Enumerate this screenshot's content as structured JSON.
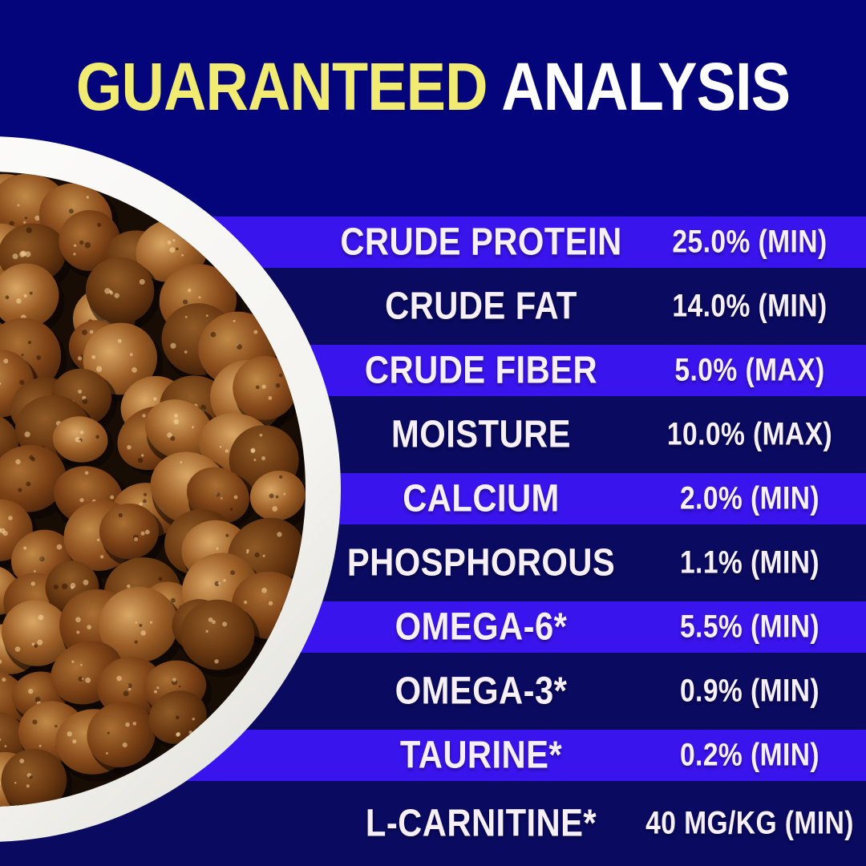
{
  "title": {
    "highlight": "GUARANTEED",
    "rest": "ANALYSIS"
  },
  "analysis_table": {
    "rows": [
      {
        "label": "CRUDE PROTEIN",
        "value": "25.0% (MIN)"
      },
      {
        "label": "CRUDE FAT",
        "value": "14.0% (MIN)"
      },
      {
        "label": "CRUDE FIBER",
        "value": "5.0% (MAX)"
      },
      {
        "label": "MOISTURE",
        "value": "10.0% (MAX)"
      },
      {
        "label": "CALCIUM",
        "value": "2.0% (MIN)"
      },
      {
        "label": "PHOSPHOROUS",
        "value": "1.1% (MIN)"
      },
      {
        "label": "OMEGA-6*",
        "value": "5.5% (MIN)"
      },
      {
        "label": "OMEGA-3*",
        "value": "0.9% (MIN)"
      },
      {
        "label": "TAURINE*",
        "value": "0.2% (MIN)"
      },
      {
        "label": "L-CARNITINE*",
        "value": "40 MG/KG (MIN)"
      }
    ]
  },
  "photo": {
    "alt": "White bowl filled with round brown dry kibble pieces"
  },
  "colors": {
    "background": "#05057b",
    "stripe_bright": "#3a14ec",
    "stripe_dark": "#0a0a60",
    "title_yellow": "#f2eb72",
    "title_white": "#ffffff",
    "row_text": "#f6f0f6",
    "bowl_rim": "#f4f3ef",
    "kibble_palette": [
      "#d9a765",
      "#9c5e27",
      "#7a4316",
      "#4a2409"
    ]
  }
}
